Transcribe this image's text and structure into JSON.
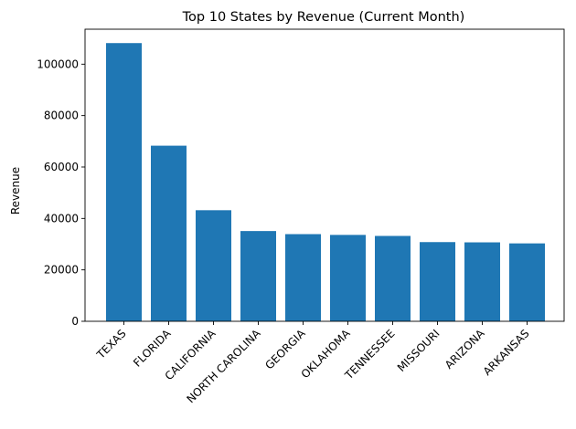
{
  "chart_data": {
    "type": "bar",
    "title": "Top 10 States by Revenue (Current Month)",
    "xlabel": "",
    "ylabel": "Revenue",
    "categories": [
      "TEXAS",
      "FLORIDA",
      "CALIFORNIA",
      "NORTH CAROLINA",
      "GEORGIA",
      "OKLAHOMA",
      "TENNESSEE",
      "MISSOURI",
      "ARIZONA",
      "ARKANSAS"
    ],
    "values": [
      108200,
      68300,
      43200,
      35100,
      33900,
      33600,
      33200,
      30800,
      30700,
      30300
    ],
    "ylim": [
      0,
      113600
    ],
    "yticks": [
      0,
      20000,
      40000,
      60000,
      80000,
      100000
    ],
    "grid": false,
    "bar_color": "#1f77b4"
  }
}
